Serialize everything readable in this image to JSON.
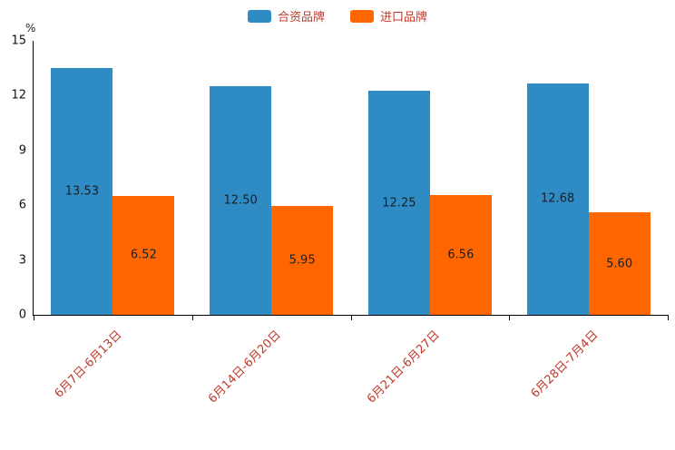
{
  "chart_data": {
    "type": "bar",
    "title": "",
    "categories": [
      "6月7日-6月13日",
      "6月14日-6月20日",
      "6月21日-6月27日",
      "6月28日-7月4日"
    ],
    "series": [
      {
        "name": "合资品牌",
        "color": "#2E8BC4",
        "values": [
          13.53,
          12.5,
          12.25,
          12.68
        ],
        "labels": [
          "13.53",
          "12.50",
          "12.25",
          "12.68"
        ]
      },
      {
        "name": "进口品牌",
        "color": "#FF6600",
        "values": [
          6.52,
          5.95,
          6.56,
          5.6
        ],
        "labels": [
          "6.52",
          "5.95",
          "6.56",
          "5.60"
        ]
      }
    ],
    "xlabel": "",
    "ylabel": "%",
    "ylim": [
      0,
      15
    ],
    "yticks": [
      0,
      3,
      6,
      9,
      12,
      15
    ],
    "grid": false,
    "legend_position": "top"
  },
  "colors": {
    "axis": "#000000",
    "y_tick_label": "#111111",
    "category_label": "#c0392b",
    "legend_label": "#c0392b",
    "value_label": "#17202a",
    "background": "#ffffff"
  }
}
